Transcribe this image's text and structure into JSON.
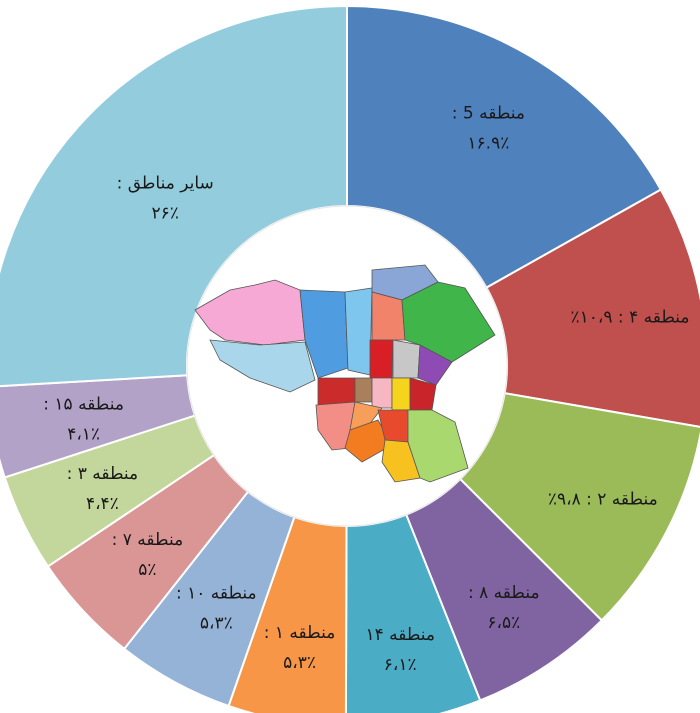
{
  "chart_data": {
    "type": "pie",
    "variant": "donut",
    "center_image": "tehran-districts-map",
    "slices": [
      {
        "name": "منطقه 5",
        "value": 16.9,
        "label": "منطقه 5 :",
        "value_label": "۱۶.۹٪",
        "color": "#4f81bd"
      },
      {
        "name": "منطقه ۴",
        "value": 10.9,
        "label": "منطقه ۴ : ۱۰،۹٪",
        "value_label": "",
        "color": "#c0504d"
      },
      {
        "name": "منطقه ۲",
        "value": 9.8,
        "label": "منطقه ۲ : ۹،۸٪",
        "value_label": "",
        "color": "#9bbb59"
      },
      {
        "name": "منطقه ۸",
        "value": 6.5,
        "label": "منطقه ۸ :",
        "value_label": "۶،۵٪",
        "color": "#8064a2"
      },
      {
        "name": "منطقه ۱۴",
        "value": 6.1,
        "label": "منطقه ۱۴",
        "value_label": "۶،۱٪",
        "color": "#4bacc6"
      },
      {
        "name": "منطقه ۱",
        "value": 5.3,
        "label": "منطقه ۱ :",
        "value_label": "۵،۳٪",
        "color": "#f79646"
      },
      {
        "name": "منطقه ۱۰",
        "value": 5.3,
        "label": "منطقه ۱۰ :",
        "value_label": "۵،۳٪",
        "color": "#95b3d7"
      },
      {
        "name": "منطقه ۷",
        "value": 5.0,
        "label": "منطقه ۷ :",
        "value_label": "۵٪",
        "color": "#d99694"
      },
      {
        "name": "منطقه ۳",
        "value": 4.4,
        "label": "منطقه ۳ :",
        "value_label": "۴،۴٪",
        "color": "#c3d69b"
      },
      {
        "name": "منطقه ۱۵",
        "value": 4.1,
        "label": "منطقه ۱۵ :",
        "value_label": "۴،۱٪",
        "color": "#b2a2c7"
      },
      {
        "name": "سایر مناطق",
        "value": 26,
        "label": "سایر مناطق :",
        "value_label": "۲۶٪",
        "color": "#93cddd"
      }
    ]
  }
}
